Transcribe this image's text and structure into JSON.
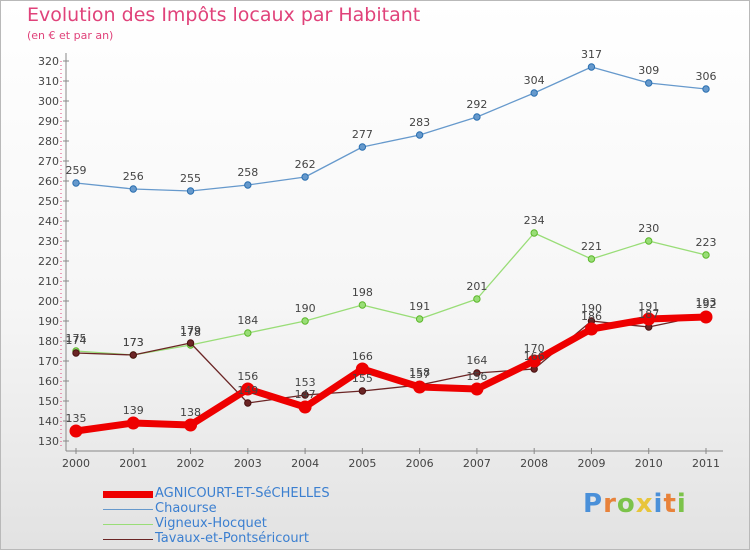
{
  "chart_data": {
    "type": "line",
    "title": "Evolution des Impôts locaux par Habitant",
    "subtitle": "(en € et par an)",
    "xlabel": "",
    "ylabel": "",
    "x": [
      "2000",
      "2001",
      "2002",
      "2003",
      "2004",
      "2005",
      "2006",
      "2007",
      "2008",
      "2009",
      "2010",
      "2011"
    ],
    "ylim": [
      130,
      320
    ],
    "yticks": [
      130,
      140,
      150,
      160,
      170,
      180,
      190,
      200,
      210,
      220,
      230,
      240,
      250,
      260,
      270,
      280,
      290,
      300,
      310,
      320
    ],
    "grid": false,
    "legend_position": "bottom-left",
    "series": [
      {
        "name": "AGNICOURT-ET-SéCHELLES",
        "color": "#ee0000",
        "values": [
          135,
          139,
          138,
          156,
          147,
          166,
          157,
          156,
          170,
          186,
          191,
          192
        ],
        "labels": [
          "135",
          "139",
          "138",
          "156",
          "147",
          "166",
          "157",
          "156",
          "170",
          "186",
          "191",
          "192"
        ]
      },
      {
        "name": "Chaourse",
        "color": "#6699cc",
        "values": [
          259,
          256,
          255,
          258,
          262,
          277,
          283,
          292,
          304,
          317,
          309,
          306
        ],
        "labels": [
          "259",
          "256",
          "255",
          "258",
          "262",
          "277",
          "283",
          "292",
          "304",
          "317",
          "309",
          "306"
        ]
      },
      {
        "name": "Vigneux-Hocquet",
        "color": "#99dd77",
        "values": [
          175,
          173,
          178,
          184,
          190,
          198,
          191,
          201,
          234,
          221,
          230,
          223
        ],
        "labels": [
          "175",
          "173",
          "178",
          "184",
          "190",
          "198",
          "191",
          "201",
          "234",
          "221",
          "230",
          "223"
        ]
      },
      {
        "name": "Tavaux-et-Pontséricourt",
        "color": "#6b2525",
        "values": [
          174,
          173,
          179,
          149,
          153,
          155,
          158,
          164,
          166,
          190,
          187,
          193
        ],
        "labels": [
          "174",
          "173",
          "179",
          "149",
          "153",
          "155",
          "158",
          "164",
          "166",
          "190",
          "187",
          "193"
        ]
      }
    ]
  },
  "logo": {
    "letters": [
      {
        "ch": "P",
        "color": "#4a90d9"
      },
      {
        "ch": "r",
        "color": "#e8823a"
      },
      {
        "ch": "o",
        "color": "#7cc34a"
      },
      {
        "ch": "x",
        "color": "#e8c53a"
      },
      {
        "ch": "i",
        "color": "#4a90d9"
      },
      {
        "ch": "t",
        "color": "#e8823a"
      },
      {
        "ch": "i",
        "color": "#7cc34a"
      }
    ]
  }
}
